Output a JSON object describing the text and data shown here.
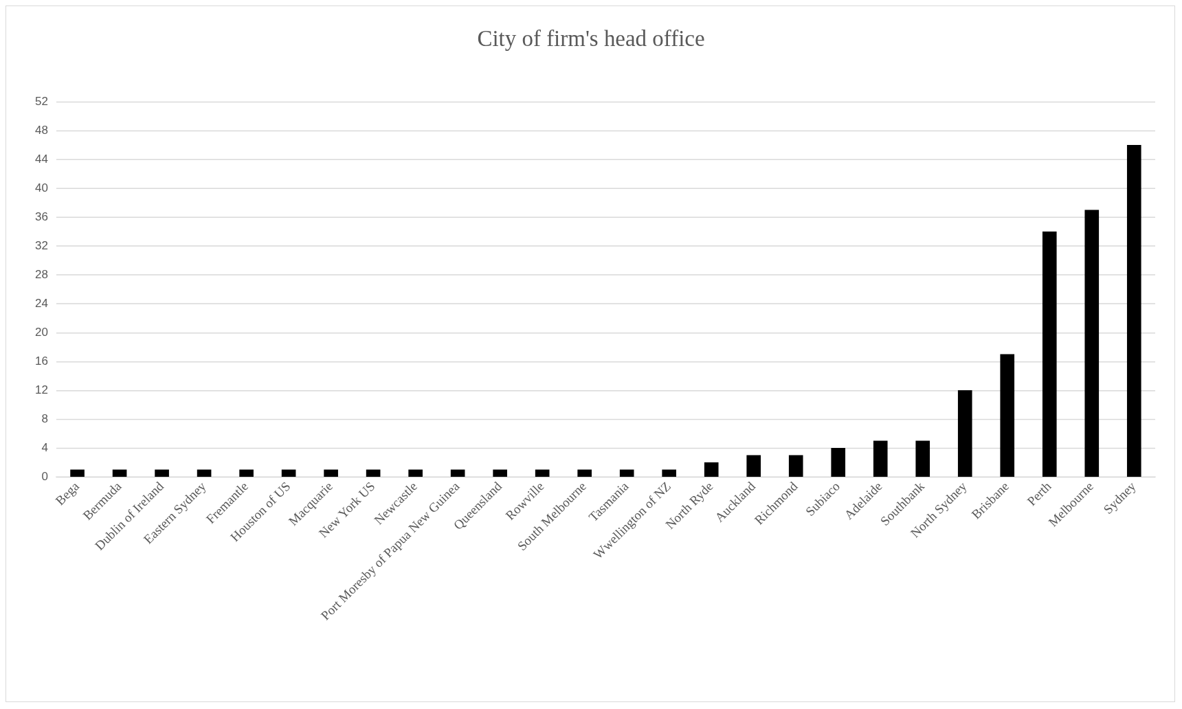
{
  "chart_data": {
    "type": "bar",
    "title": "City of firm's head office",
    "categories": [
      "Bega",
      "Bermuda",
      "Dublin of Ireland",
      "Eastern Sydney",
      "Fremantle",
      "Houston of US",
      "Macquarie",
      "New York US",
      "Newcastle",
      "Port Moresby of Papua New Guinea",
      "Queensland",
      "Rowville",
      "South Melbourne",
      "Tasmania",
      "Wwellington of NZ",
      "North Ryde",
      "Auckland",
      "Richmond",
      "Subiaco",
      "Adelaide",
      "Southbank",
      "North Sydney",
      "Brisbane",
      "Perth",
      "Melbourne",
      "Sydney"
    ],
    "values": [
      1,
      1,
      1,
      1,
      1,
      1,
      1,
      1,
      1,
      1,
      1,
      1,
      1,
      1,
      1,
      2,
      3,
      3,
      4,
      5,
      5,
      12,
      17,
      34,
      37,
      46
    ],
    "color": "#000000",
    "ylim": [
      0,
      52
    ],
    "yticks": [
      0,
      4,
      8,
      12,
      16,
      20,
      24,
      28,
      32,
      36,
      40,
      44,
      48,
      52
    ],
    "grid": "y",
    "legend": false
  }
}
